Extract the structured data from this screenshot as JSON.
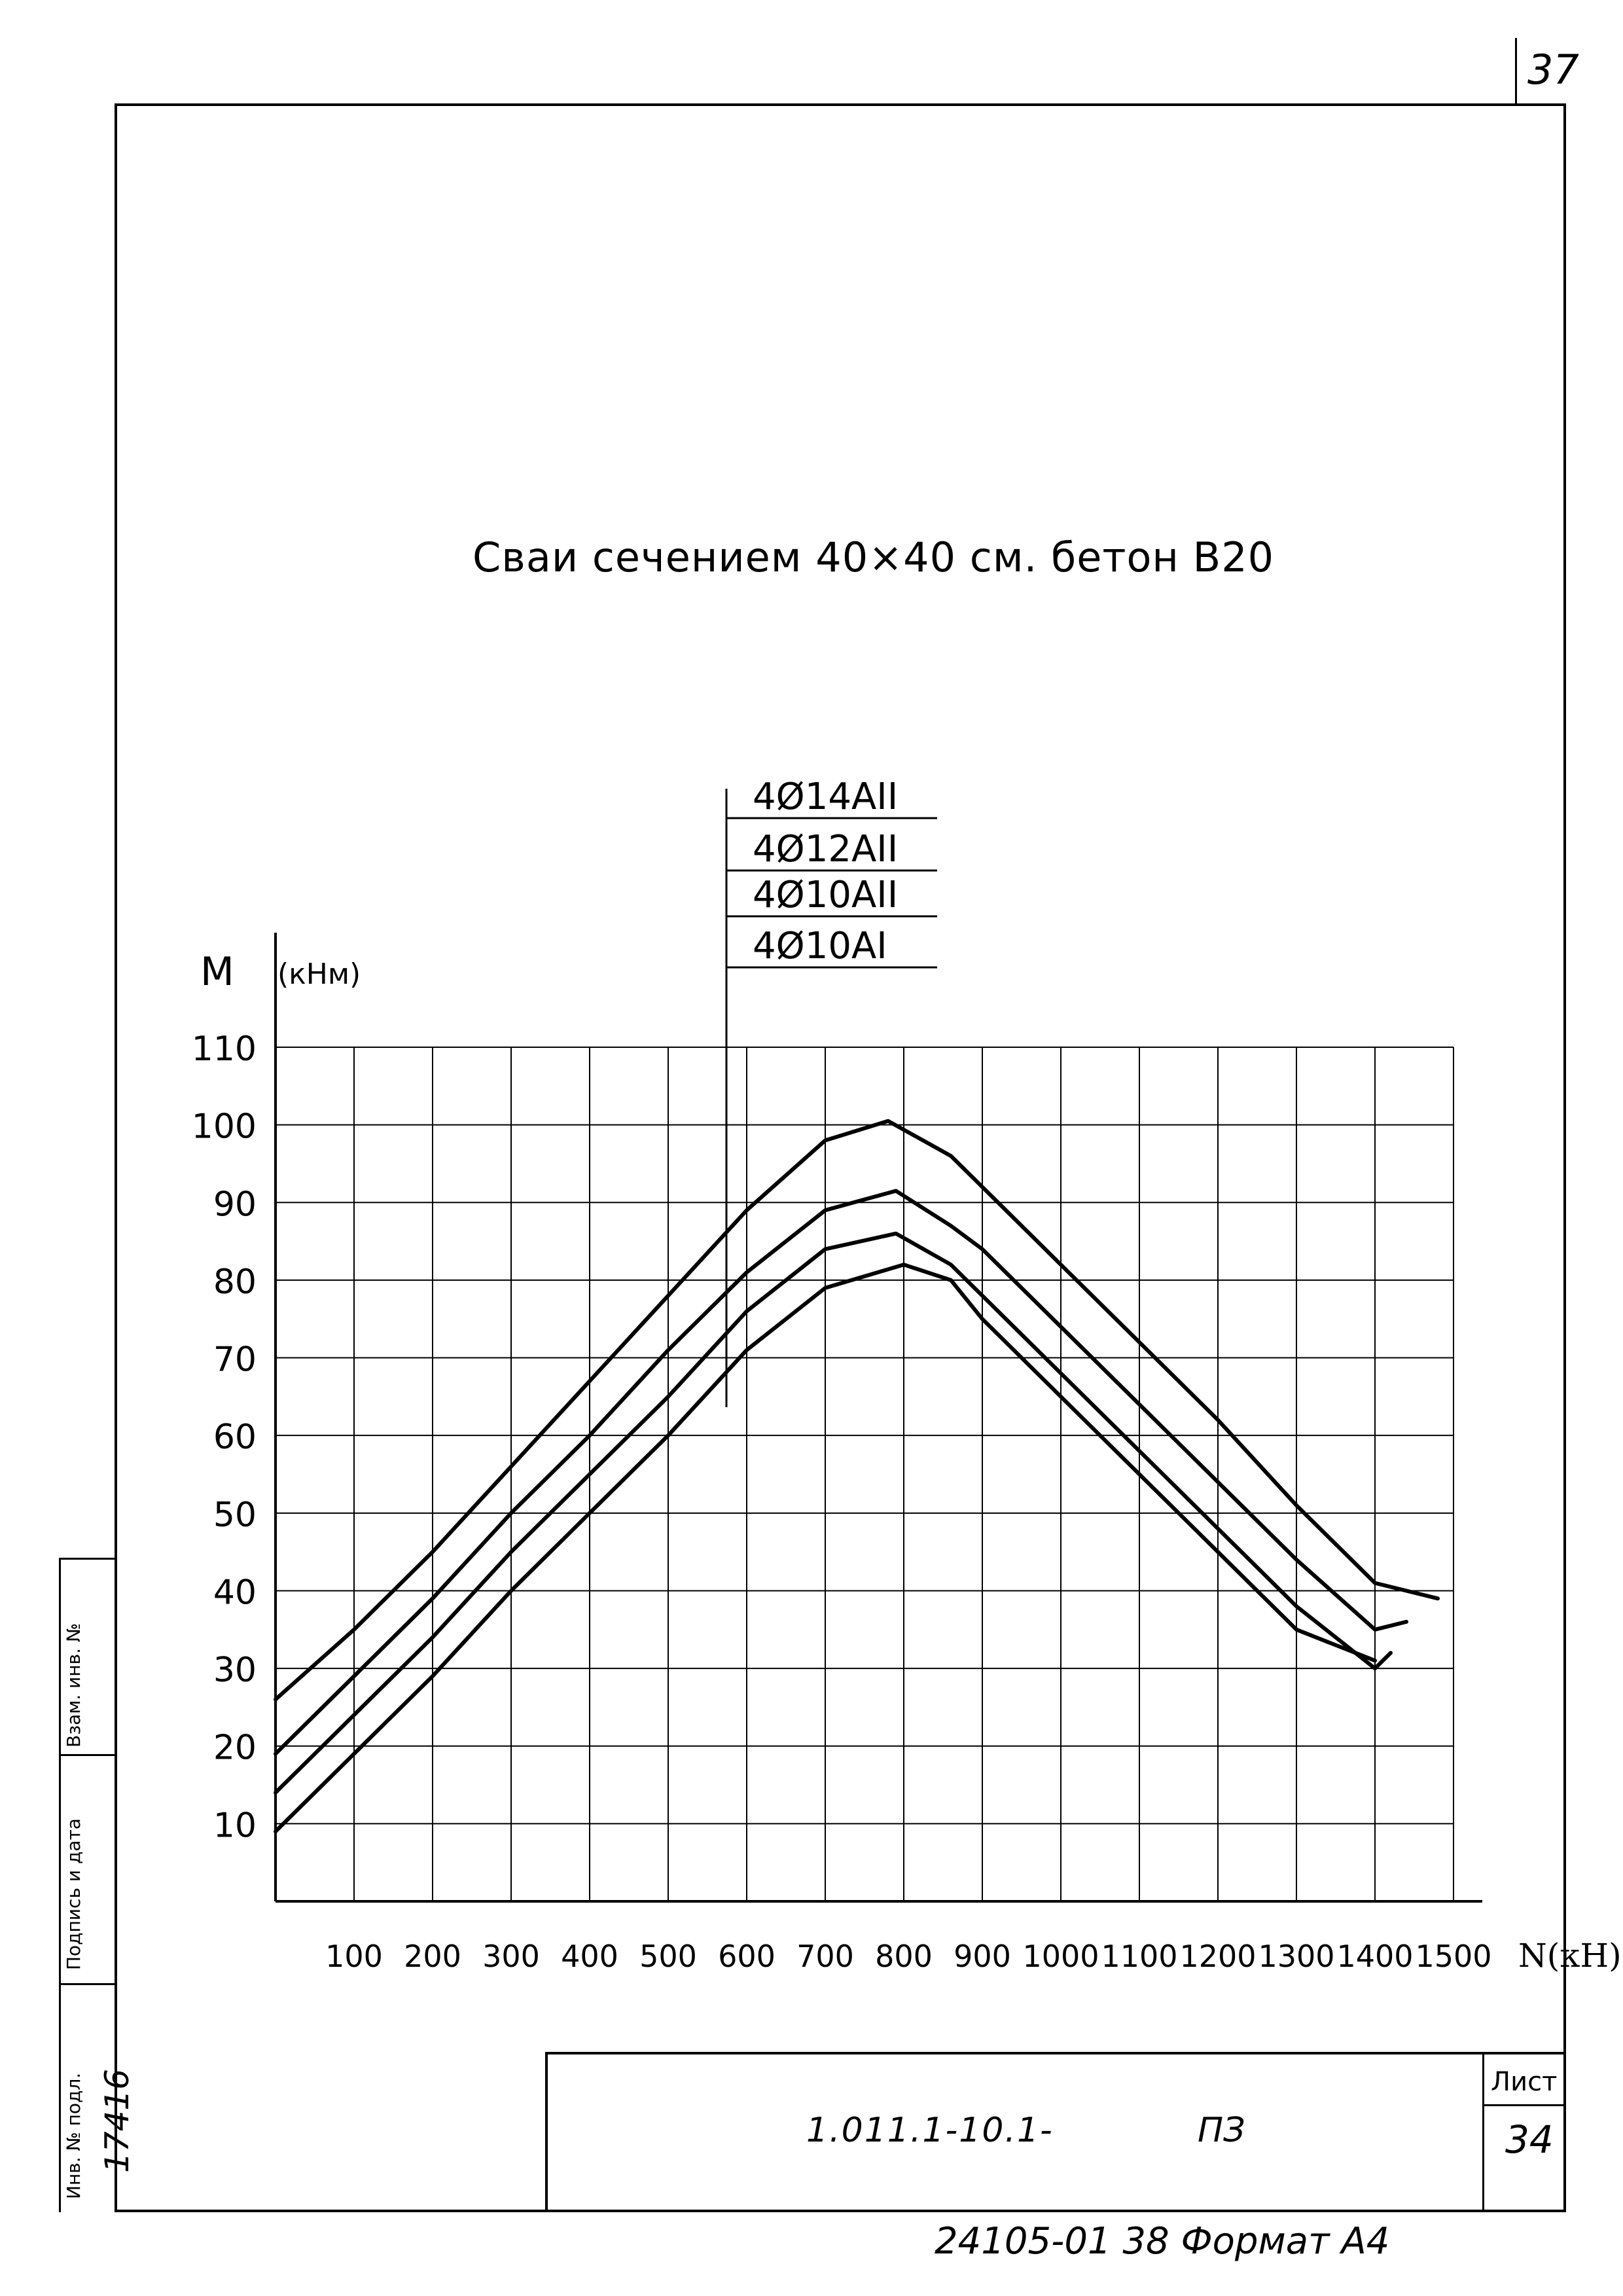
{
  "sheet_top_number": "37",
  "chart_data": {
    "type": "line",
    "title": "Сваи сечением 40×40 см. бетон В20",
    "xlabel": "N(кН)",
    "ylabel": "M",
    "ylabel_unit": "(кНм)",
    "xlim": [
      0,
      1500
    ],
    "ylim": [
      0,
      110
    ],
    "x_ticks": [
      100,
      200,
      300,
      400,
      500,
      600,
      700,
      800,
      900,
      1000,
      1100,
      1200,
      1300,
      1400,
      1500
    ],
    "y_ticks": [
      10,
      20,
      30,
      40,
      50,
      60,
      70,
      80,
      90,
      100,
      110
    ],
    "grid": true,
    "legend_placement": "top-center",
    "series": [
      {
        "name": "4Ø14АII",
        "points": [
          [
            0,
            26
          ],
          [
            100,
            35
          ],
          [
            200,
            45
          ],
          [
            300,
            56
          ],
          [
            400,
            67
          ],
          [
            500,
            78
          ],
          [
            600,
            89
          ],
          [
            700,
            98
          ],
          [
            780,
            100.5
          ],
          [
            860,
            96
          ],
          [
            900,
            92
          ],
          [
            1000,
            82
          ],
          [
            1100,
            72
          ],
          [
            1200,
            62
          ],
          [
            1300,
            51
          ],
          [
            1400,
            41
          ],
          [
            1480,
            39
          ]
        ]
      },
      {
        "name": "4Ø12АII",
        "points": [
          [
            0,
            19
          ],
          [
            100,
            29
          ],
          [
            200,
            39
          ],
          [
            300,
            50
          ],
          [
            400,
            60
          ],
          [
            500,
            71
          ],
          [
            600,
            81
          ],
          [
            700,
            89
          ],
          [
            790,
            91.5
          ],
          [
            860,
            87
          ],
          [
            900,
            84
          ],
          [
            1000,
            74
          ],
          [
            1100,
            64
          ],
          [
            1200,
            54
          ],
          [
            1300,
            44
          ],
          [
            1400,
            35
          ],
          [
            1440,
            36
          ]
        ]
      },
      {
        "name": "4Ø10АII",
        "points": [
          [
            0,
            14
          ],
          [
            100,
            24
          ],
          [
            200,
            34
          ],
          [
            300,
            45
          ],
          [
            400,
            55
          ],
          [
            500,
            65
          ],
          [
            600,
            76
          ],
          [
            700,
            84
          ],
          [
            790,
            86
          ],
          [
            860,
            82
          ],
          [
            900,
            78
          ],
          [
            1000,
            68
          ],
          [
            1100,
            58
          ],
          [
            1200,
            48
          ],
          [
            1300,
            38
          ],
          [
            1400,
            30
          ],
          [
            1420,
            32
          ]
        ]
      },
      {
        "name": "4Ø10АI",
        "points": [
          [
            0,
            9
          ],
          [
            100,
            19
          ],
          [
            200,
            29
          ],
          [
            300,
            40
          ],
          [
            400,
            50
          ],
          [
            500,
            60
          ],
          [
            600,
            71
          ],
          [
            700,
            79
          ],
          [
            800,
            82
          ],
          [
            860,
            80
          ],
          [
            900,
            75
          ],
          [
            1000,
            65
          ],
          [
            1100,
            55
          ],
          [
            1200,
            45
          ],
          [
            1300,
            35
          ],
          [
            1400,
            31
          ]
        ]
      }
    ]
  },
  "stamp": {
    "code": "1.011.1-10.1-",
    "doc": "ПЗ",
    "sheet_label": "Лист",
    "sheet_number": "34"
  },
  "footer": "24105-01  38  Формат А4",
  "side_labels": {
    "replaced_inv": "Взам. инв. №",
    "signature_date": "Подпись и дата",
    "original_inv": "Инв. № подл.",
    "original_inv_value": "17416"
  }
}
